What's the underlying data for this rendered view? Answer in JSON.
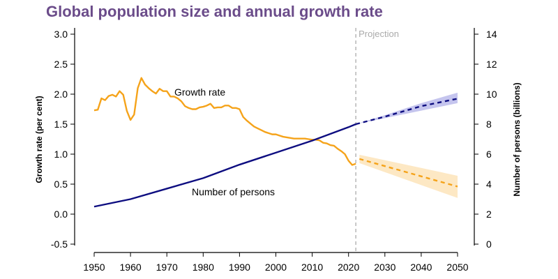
{
  "chart_data": {
    "type": "line",
    "title": "Global population size and annual growth rate",
    "ylabel_left": "Growth rate (per cent)",
    "ylabel_right": "Number of persons (billions)",
    "xlim": [
      1950,
      2050
    ],
    "ylim_left": [
      -0.5,
      3.0
    ],
    "ylim_right": [
      0,
      14
    ],
    "x_ticks": [
      1950,
      1960,
      1970,
      1980,
      1990,
      2000,
      2010,
      2020,
      2030,
      2040,
      2050
    ],
    "y_ticks_left": [
      "-0.5",
      "0.0",
      "0.5",
      "1.0",
      "1.5",
      "2.0",
      "2.5",
      "3.0"
    ],
    "y_ticks_right": [
      "0",
      "2",
      "4",
      "6",
      "8",
      "10",
      "12",
      "14"
    ],
    "grid": false,
    "projection_label": "Projection",
    "projection_start": 2022,
    "colors": {
      "growth": "#f5a31a",
      "growth_band": "#fde8c4",
      "population": "#0d0d80",
      "population_band": "#c5c5ee",
      "projection_line": "#aaaaaa",
      "title": "#6b4c8a"
    },
    "series": [
      {
        "name": "Growth rate",
        "axis": "left",
        "x": [
          1950,
          1951,
          1952,
          1953,
          1954,
          1955,
          1956,
          1957,
          1958,
          1959,
          1960,
          1961,
          1962,
          1963,
          1964,
          1965,
          1966,
          1967,
          1968,
          1969,
          1970,
          1971,
          1972,
          1973,
          1974,
          1975,
          1976,
          1977,
          1978,
          1979,
          1980,
          1981,
          1982,
          1983,
          1984,
          1985,
          1986,
          1987,
          1988,
          1989,
          1990,
          1991,
          1992,
          1993,
          1994,
          1995,
          1996,
          1997,
          1998,
          1999,
          2000,
          2001,
          2002,
          2003,
          2004,
          2005,
          2006,
          2007,
          2008,
          2009,
          2010,
          2011,
          2012,
          2013,
          2014,
          2015,
          2016,
          2017,
          2018,
          2019,
          2020,
          2021,
          2022
        ],
        "values": [
          1.73,
          1.74,
          1.93,
          1.9,
          1.97,
          1.99,
          1.96,
          2.05,
          1.99,
          1.72,
          1.57,
          1.66,
          2.1,
          2.27,
          2.16,
          2.1,
          2.05,
          2.01,
          2.09,
          2.05,
          2.05,
          1.96,
          1.96,
          1.93,
          1.88,
          1.8,
          1.77,
          1.75,
          1.75,
          1.78,
          1.79,
          1.81,
          1.84,
          1.77,
          1.78,
          1.78,
          1.81,
          1.81,
          1.77,
          1.77,
          1.75,
          1.62,
          1.56,
          1.51,
          1.46,
          1.43,
          1.4,
          1.37,
          1.35,
          1.33,
          1.33,
          1.31,
          1.29,
          1.28,
          1.27,
          1.26,
          1.26,
          1.26,
          1.26,
          1.25,
          1.24,
          1.24,
          1.23,
          1.19,
          1.18,
          1.15,
          1.14,
          1.09,
          1.05,
          1.0,
          0.89,
          0.82,
          0.84
        ],
        "projection": {
          "x": [
            2023,
            2050
          ],
          "values": [
            0.92,
            0.46
          ],
          "lower": [
            0.85,
            0.27
          ],
          "upper": [
            0.99,
            0.64
          ]
        }
      },
      {
        "name": "Number of persons",
        "axis": "right",
        "x": [
          1950,
          1960,
          1970,
          1980,
          1990,
          2000,
          2010,
          2020,
          2022
        ],
        "values": [
          2.5,
          3.0,
          3.7,
          4.4,
          5.3,
          6.1,
          6.9,
          7.8,
          8.0
        ],
        "projection": {
          "x": [
            2022,
            2030,
            2040,
            2050
          ],
          "values": [
            8.0,
            8.5,
            9.2,
            9.7
          ],
          "lower": [
            8.0,
            8.4,
            8.9,
            9.4
          ],
          "upper": [
            8.0,
            8.6,
            9.4,
            10.1
          ]
        }
      }
    ]
  }
}
